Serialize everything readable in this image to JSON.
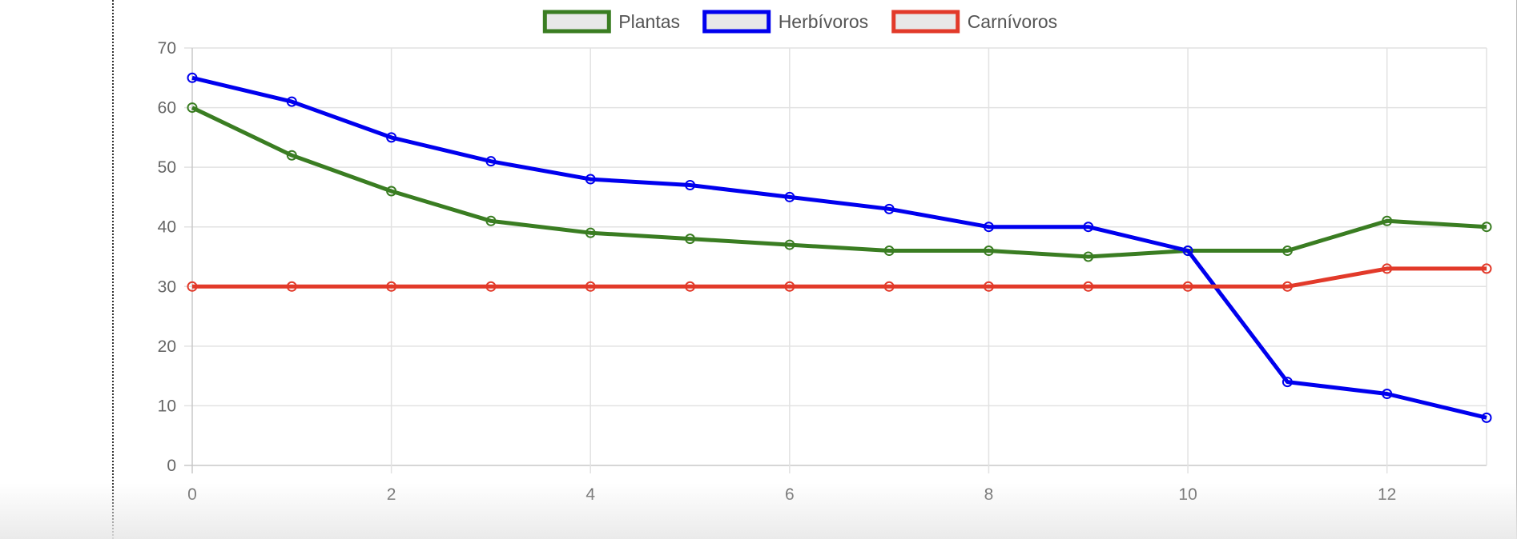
{
  "chart_data": {
    "type": "line",
    "title": "",
    "xlabel": "",
    "ylabel": "",
    "x": [
      0,
      1,
      2,
      3,
      4,
      5,
      6,
      7,
      8,
      9,
      10,
      11,
      12,
      13
    ],
    "xlim": [
      0,
      13
    ],
    "ylim": [
      0,
      70
    ],
    "x_ticks": [
      0,
      2,
      4,
      6,
      8,
      10,
      12
    ],
    "y_ticks": [
      0,
      10,
      20,
      30,
      40,
      50,
      60,
      70
    ],
    "grid": true,
    "legend_position": "top-center",
    "series": [
      {
        "name": "Plantas",
        "color": "#3a7d22",
        "values": [
          60,
          52,
          46,
          41,
          39,
          38,
          37,
          36,
          36,
          35,
          36,
          36,
          41,
          40
        ]
      },
      {
        "name": "Herbívoros",
        "color": "#0000ee",
        "values": [
          65,
          61,
          55,
          51,
          48,
          47,
          45,
          43,
          40,
          40,
          36,
          14,
          12,
          8
        ]
      },
      {
        "name": "Carnívoros",
        "color": "#e23a2a",
        "values": [
          30,
          30,
          30,
          30,
          30,
          30,
          30,
          30,
          30,
          30,
          30,
          30,
          33,
          33
        ]
      }
    ]
  }
}
